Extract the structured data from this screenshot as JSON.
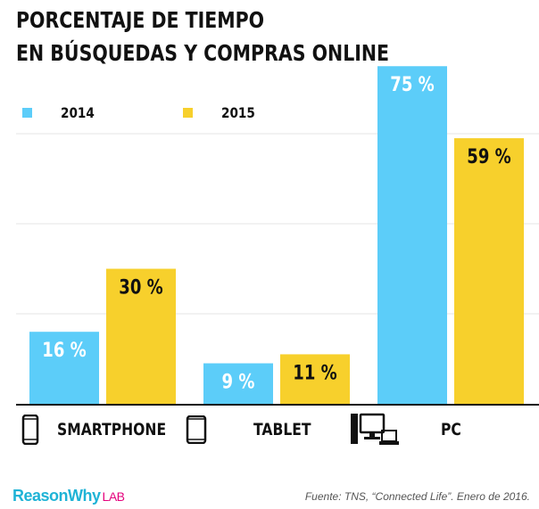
{
  "title_line1": "PORCENTAJE DE TIEMPO",
  "title_line2": "EN BÚSQUEDAS Y COMPRAS ONLINE",
  "colors": {
    "series_2014": "#5ccdf9",
    "series_2015": "#f7d02c",
    "grid": "#e6e6e6"
  },
  "chart_data": {
    "type": "bar",
    "title": "PORCENTAJE DE TIEMPO EN BÚSQUEDAS Y COMPRAS ONLINE",
    "categories": [
      "SMARTPHONE",
      "TABLET",
      "PC"
    ],
    "series": [
      {
        "name": "2014",
        "values": [
          16,
          9,
          75
        ],
        "labels": [
          "16 %",
          "9 %",
          "75 %"
        ]
      },
      {
        "name": "2015",
        "values": [
          30,
          11,
          59
        ],
        "labels": [
          "30 %",
          "11 %",
          "59 %"
        ]
      }
    ],
    "xlabel": "",
    "ylabel": "",
    "ylim": [
      0,
      80
    ],
    "grid": true,
    "legend": "top-left"
  },
  "category_icons": [
    "smartphone-icon",
    "tablet-icon",
    "desktop-laptop-icon"
  ],
  "footer": {
    "brand_main": "ReasonWhy",
    "brand_lab": "LAB",
    "source": "Fuente: TNS, “Connected Life”. Enero de 2016."
  }
}
